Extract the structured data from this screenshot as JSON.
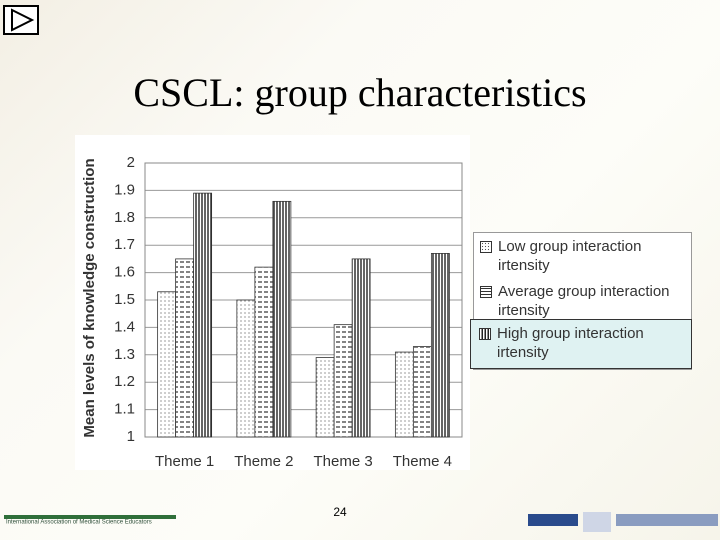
{
  "slide": {
    "title": "CSCL: group characteristics",
    "page_number": "24",
    "footer_left": "International Association of Medical Science Educators"
  },
  "chart_data": {
    "type": "bar",
    "y_label": "Mean levels of knowledge construction",
    "categories": [
      "Theme 1",
      "Theme 2",
      "Theme 3",
      "Theme 4"
    ],
    "series": [
      {
        "name": "Low group interaction irtensity",
        "values": [
          1.53,
          1.5,
          1.29,
          1.31
        ]
      },
      {
        "name": "Average group interaction irtensity",
        "values": [
          1.65,
          1.62,
          1.41,
          1.33
        ]
      },
      {
        "name": "High group interaction irtensity",
        "values": [
          1.89,
          1.86,
          1.65,
          1.67
        ]
      }
    ],
    "ylim": [
      1,
      2
    ],
    "yticks": [
      1,
      1.1,
      1.2,
      1.3,
      1.4,
      1.5,
      1.6,
      1.7,
      1.8,
      1.9,
      2
    ],
    "grid": true
  }
}
